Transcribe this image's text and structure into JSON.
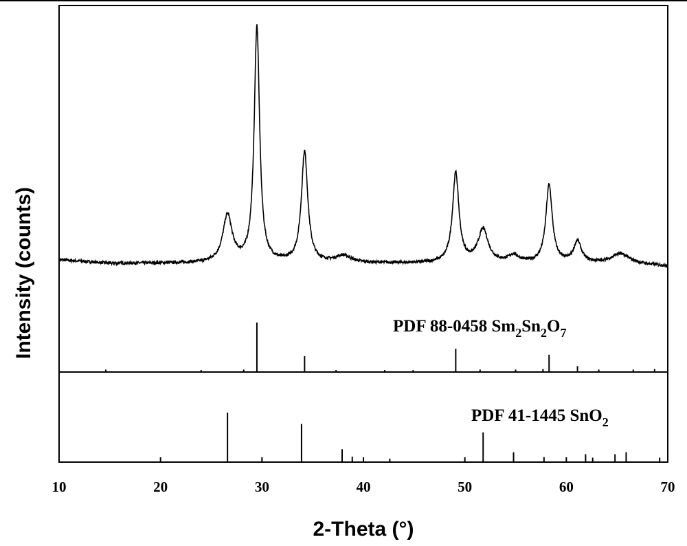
{
  "chart_data": {
    "type": "line",
    "xlabel": "2-Theta (°)",
    "ylabel": "Intensity (counts)",
    "xlim": [
      10,
      70
    ],
    "xticks": [
      "10",
      "20",
      "30",
      "40",
      "50",
      "60",
      "70"
    ],
    "grid": false,
    "legend": "none",
    "series": [
      {
        "name": "",
        "peaks": [
          {
            "x": 26.6,
            "height": 0.2,
            "width": 0.55
          },
          {
            "x": 29.5,
            "height": 1.0,
            "width": 0.32
          },
          {
            "x": 34.2,
            "height": 0.47,
            "width": 0.38
          },
          {
            "x": 38.0,
            "height": 0.03,
            "width": 0.9
          },
          {
            "x": 49.1,
            "height": 0.38,
            "width": 0.38
          },
          {
            "x": 51.8,
            "height": 0.14,
            "width": 0.6
          },
          {
            "x": 54.8,
            "height": 0.03,
            "width": 0.6
          },
          {
            "x": 58.3,
            "height": 0.33,
            "width": 0.38
          },
          {
            "x": 61.1,
            "height": 0.09,
            "width": 0.45
          },
          {
            "x": 65.3,
            "height": 0.04,
            "width": 1.0
          }
        ]
      }
    ],
    "references": [
      {
        "label_main": "PDF 88-0458 Sm",
        "label_parts": [
          "2",
          "Sn",
          "2",
          "O",
          "7"
        ],
        "sticks": [
          {
            "x": 14.6,
            "h": 0.05
          },
          {
            "x": 24.0,
            "h": 0.04
          },
          {
            "x": 28.2,
            "h": 0.05
          },
          {
            "x": 29.5,
            "h": 1.0
          },
          {
            "x": 34.2,
            "h": 0.32
          },
          {
            "x": 37.3,
            "h": 0.04
          },
          {
            "x": 42.1,
            "h": 0.04
          },
          {
            "x": 44.9,
            "h": 0.04
          },
          {
            "x": 49.1,
            "h": 0.47
          },
          {
            "x": 51.5,
            "h": 0.05
          },
          {
            "x": 55.0,
            "h": 0.05
          },
          {
            "x": 57.7,
            "h": 0.06
          },
          {
            "x": 58.3,
            "h": 0.35
          },
          {
            "x": 61.1,
            "h": 0.12
          },
          {
            "x": 63.2,
            "h": 0.05
          },
          {
            "x": 66.6,
            "h": 0.05
          },
          {
            "x": 68.7,
            "h": 0.06
          }
        ]
      },
      {
        "label_main": "PDF 41-1445 SnO",
        "label_parts": [
          "2"
        ],
        "sticks": [
          {
            "x": 26.6,
            "h": 1.0
          },
          {
            "x": 33.9,
            "h": 0.77
          },
          {
            "x": 37.9,
            "h": 0.26
          },
          {
            "x": 38.9,
            "h": 0.11
          },
          {
            "x": 42.6,
            "h": 0.07
          },
          {
            "x": 51.8,
            "h": 0.6
          },
          {
            "x": 54.8,
            "h": 0.2
          },
          {
            "x": 57.8,
            "h": 0.1
          },
          {
            "x": 61.9,
            "h": 0.16
          },
          {
            "x": 62.6,
            "h": 0.09
          },
          {
            "x": 64.8,
            "h": 0.16
          },
          {
            "x": 65.9,
            "h": 0.2
          },
          {
            "x": 69.2,
            "h": 0.09
          }
        ]
      }
    ]
  }
}
